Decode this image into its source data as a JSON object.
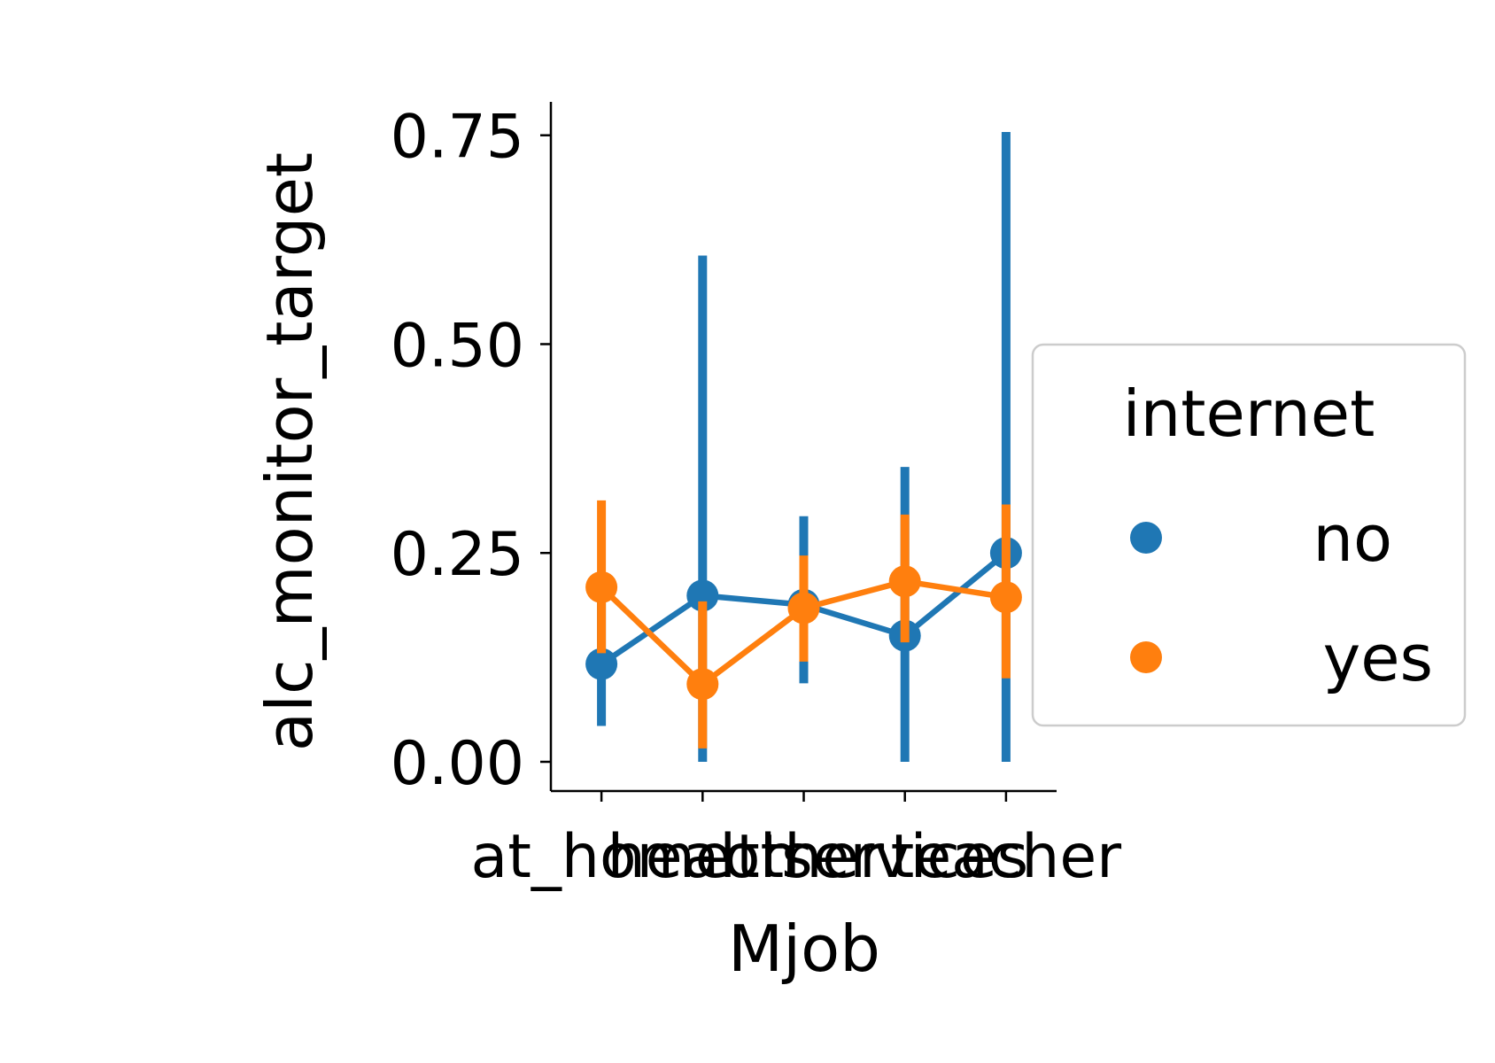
{
  "chart_data": {
    "type": "line",
    "subtype": "pointplot-with-error-bars",
    "title": "",
    "xlabel": "Mjob",
    "ylabel": "alc_monitor_target",
    "categories": [
      "at_home",
      "health",
      "other",
      "services",
      "teacher"
    ],
    "yticks": [
      "0.00",
      "0.25",
      "0.50",
      "0.75"
    ],
    "ylim": [
      -0.035,
      0.79
    ],
    "grid": false,
    "legend": {
      "title": "internet",
      "placement": "right"
    },
    "series": [
      {
        "name": "no",
        "color": "#1f77b4",
        "values": [
          0.117,
          0.199,
          0.188,
          0.151,
          0.25
        ],
        "ci_low": [
          0.043,
          0.0,
          0.094,
          0.0,
          0.0
        ],
        "ci_high": [
          0.199,
          0.606,
          0.294,
          0.353,
          0.754
        ]
      },
      {
        "name": "yes",
        "color": "#ff7f0e",
        "values": [
          0.209,
          0.093,
          0.184,
          0.216,
          0.197
        ],
        "ci_low": [
          0.13,
          0.016,
          0.12,
          0.143,
          0.1
        ],
        "ci_high": [
          0.313,
          0.192,
          0.247,
          0.296,
          0.308
        ]
      }
    ]
  }
}
